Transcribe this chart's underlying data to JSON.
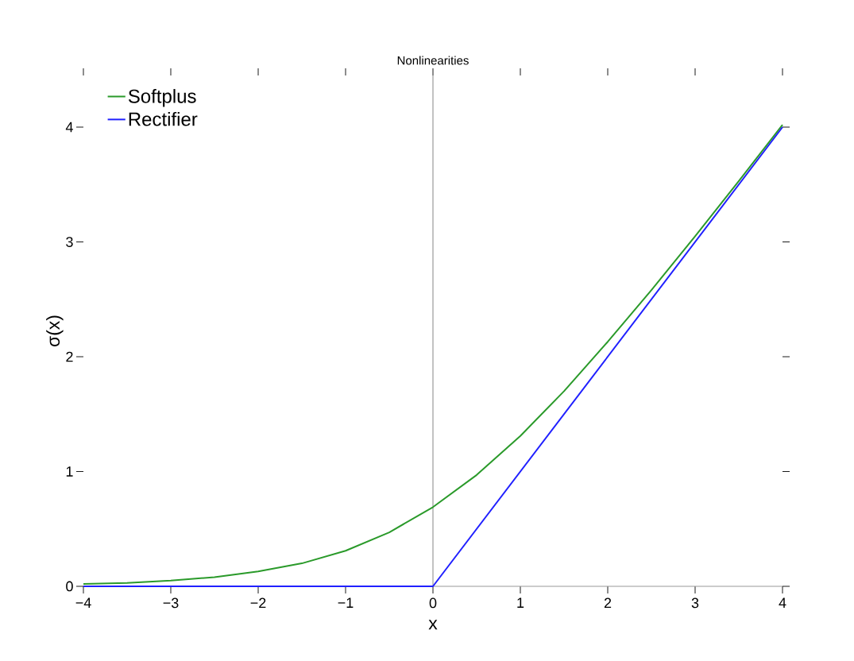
{
  "chart_data": {
    "type": "line",
    "title": "Nonlinearities",
    "xlabel": "x",
    "ylabel": "σ(x)",
    "x": [
      -4,
      -3.5,
      -3,
      -2.5,
      -2,
      -1.5,
      -1,
      -0.5,
      0,
      0.5,
      1,
      1.5,
      2,
      2.5,
      3,
      3.5,
      4
    ],
    "series": [
      {
        "name": "Softplus",
        "color": "#2a9a2a",
        "values": [
          0.02,
          0.03,
          0.05,
          0.08,
          0.13,
          0.2,
          0.31,
          0.47,
          0.69,
          0.97,
          1.31,
          1.7,
          2.13,
          2.58,
          3.05,
          3.53,
          4.02
        ]
      },
      {
        "name": "Rectifier",
        "color": "#2020ff",
        "x": [
          -4,
          0,
          4
        ],
        "values": [
          0,
          0,
          4
        ]
      }
    ],
    "xlim": [
      -4,
      4
    ],
    "ylim": [
      0,
      4.45
    ],
    "xticks": [
      {
        "value": -4,
        "label": "−4"
      },
      {
        "value": -3,
        "label": "−3"
      },
      {
        "value": -2,
        "label": "−2"
      },
      {
        "value": -1,
        "label": "−1"
      },
      0,
      1,
      2,
      3,
      4
    ],
    "yticks": [
      0,
      1,
      2,
      3,
      4
    ],
    "ref_lines": [
      {
        "axis": "x",
        "value": 0,
        "color": "#999999"
      }
    ],
    "legend": "top left"
  }
}
